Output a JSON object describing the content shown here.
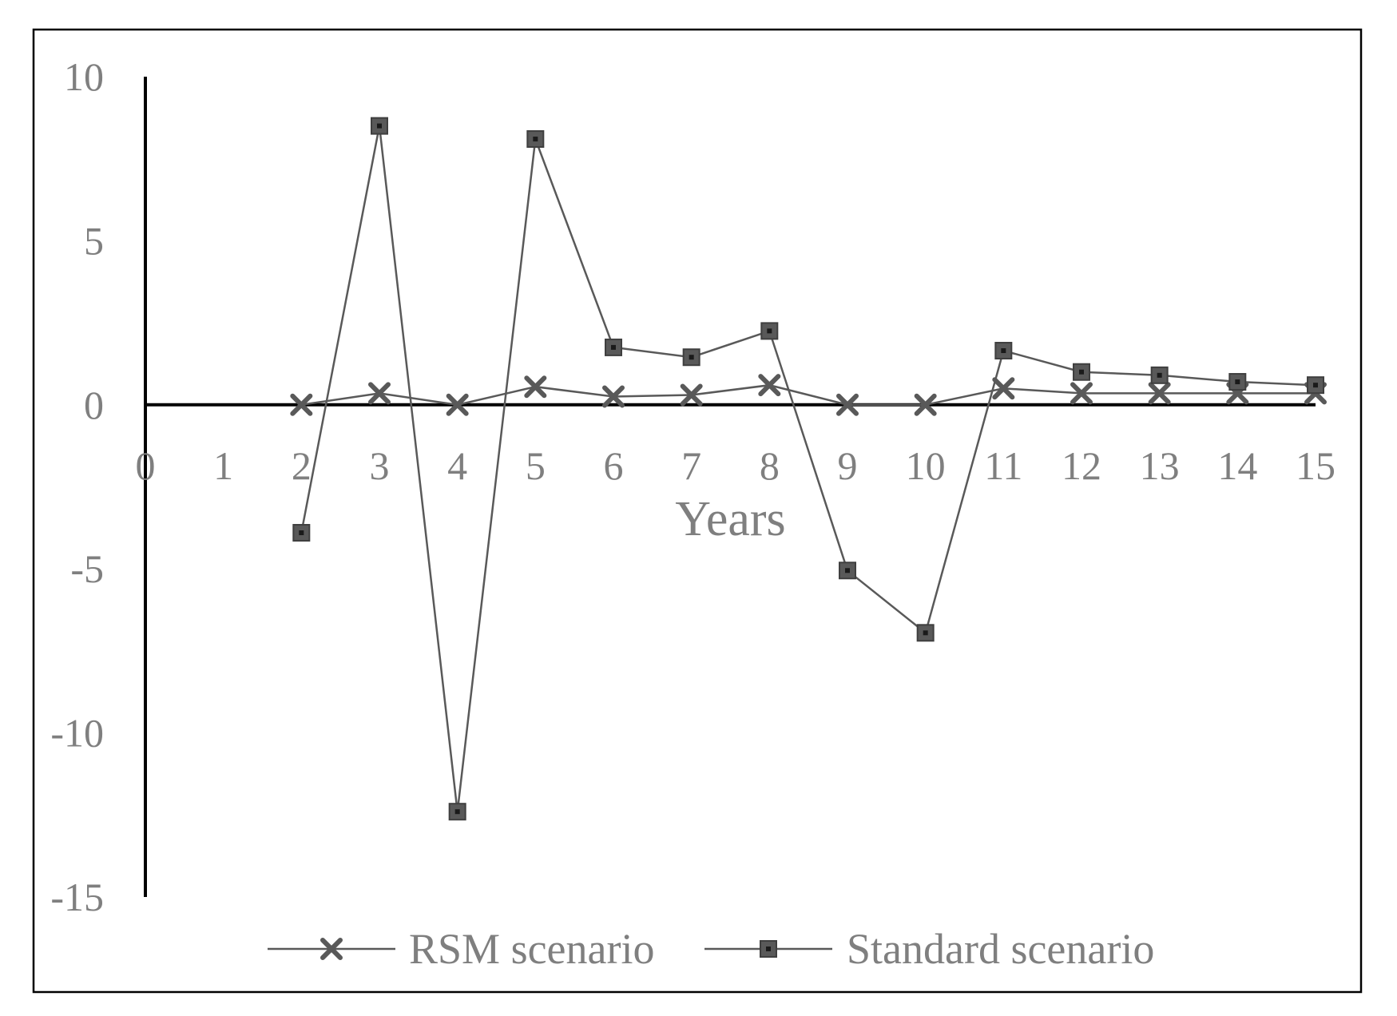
{
  "chart_data": {
    "type": "line",
    "title": "",
    "xlabel": "Years",
    "ylabel": "",
    "x": [
      0,
      1,
      2,
      3,
      4,
      5,
      6,
      7,
      8,
      9,
      10,
      11,
      12,
      13,
      14,
      15
    ],
    "xlim": [
      0,
      15
    ],
    "ylim": [
      -15,
      10
    ],
    "yticks": [
      10,
      5,
      0,
      -5,
      -10,
      -15
    ],
    "grid": false,
    "legend_position": "bottom",
    "series": [
      {
        "name": "RSM scenario",
        "marker": "x",
        "color": "#595959",
        "points": [
          [
            2,
            0.0
          ],
          [
            3,
            0.35
          ],
          [
            4,
            0.0
          ],
          [
            5,
            0.55
          ],
          [
            6,
            0.25
          ],
          [
            7,
            0.3
          ],
          [
            8,
            0.6
          ],
          [
            9,
            0.0
          ],
          [
            10,
            0.0
          ],
          [
            11,
            0.5
          ],
          [
            12,
            0.35
          ],
          [
            13,
            0.35
          ],
          [
            14,
            0.35
          ],
          [
            15,
            0.35
          ]
        ]
      },
      {
        "name": "Standard scenario",
        "marker": "square",
        "color": "#595959",
        "points": [
          [
            2,
            -3.9
          ],
          [
            3,
            8.5
          ],
          [
            4,
            -12.4
          ],
          [
            5,
            8.1
          ],
          [
            6,
            1.75
          ],
          [
            7,
            1.45
          ],
          [
            8,
            2.25
          ],
          [
            9,
            -5.05
          ],
          [
            10,
            -6.95
          ],
          [
            11,
            1.65
          ],
          [
            12,
            1.0
          ],
          [
            13,
            0.9
          ],
          [
            14,
            0.7
          ],
          [
            15,
            0.6
          ]
        ]
      }
    ]
  }
}
